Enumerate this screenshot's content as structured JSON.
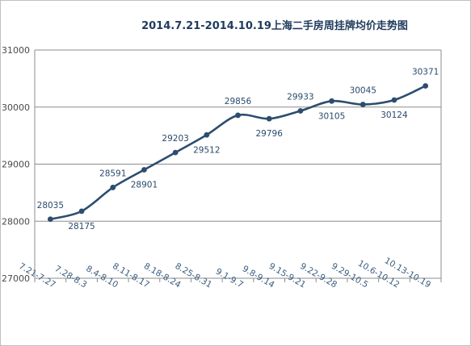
{
  "chart_data": {
    "type": "line",
    "title": "2014.7.21-2014.10.19上海二手房周挂牌均价走势图",
    "xlabel": "",
    "ylabel": "",
    "ylim": [
      27000,
      31000
    ],
    "yticks": [
      "27000",
      "28000",
      "29000",
      "30000",
      "31000"
    ],
    "grid": true,
    "legend": "none",
    "line_color": "#2c4d6e",
    "categories": [
      "7.21-7.27",
      "7.28-8.3",
      "8.4-8.10",
      "8.11-8.17",
      "8.18-8.24",
      "8.25-8.31",
      "9.1-9.7",
      "9.8-9.14",
      "9.15-9.21",
      "9.22-9.28",
      "9.29-10.5",
      "10.6-10.12",
      "10.13-10.19"
    ],
    "series": [
      {
        "values": [
          28035,
          28175,
          28591,
          28901,
          29203,
          29512,
          29856,
          29796,
          29933,
          30105,
          30045,
          30124,
          30371
        ],
        "labels": [
          "28035",
          "28175",
          "28591",
          "28901",
          "29203",
          "29512",
          "29856",
          "29796",
          "29933",
          "30105",
          "30045",
          "30124",
          "30371"
        ]
      }
    ]
  }
}
